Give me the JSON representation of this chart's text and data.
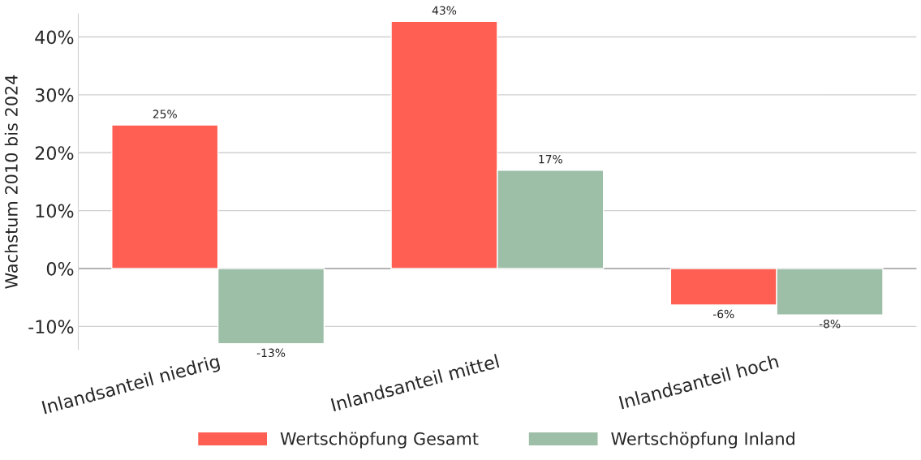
{
  "chart_data": {
    "type": "bar",
    "ylabel": "Wachstum 2010 bis 2024",
    "categories": [
      "Inlandsanteil niedrig",
      "Inlandsanteil mittel",
      "Inlandsanteil hoch"
    ],
    "series": [
      {
        "name": "Wertschöpfung Gesamt",
        "color": "#ff5f52",
        "values": [
          24.8,
          42.7,
          -6.3
        ],
        "value_labels": [
          "25%",
          "43%",
          "-6%"
        ]
      },
      {
        "name": "Wertschöpfung Inland",
        "color": "#9dbfa7",
        "values": [
          -13.0,
          17.0,
          -8.0
        ],
        "value_labels": [
          "-13%",
          "17%",
          "-8%"
        ]
      }
    ],
    "ylim": [
      -14,
      44
    ],
    "yticks": [
      {
        "value": -10,
        "label": "-10%"
      },
      {
        "value": 0,
        "label": "0%"
      },
      {
        "value": 10,
        "label": "10%"
      },
      {
        "value": 20,
        "label": "20%"
      },
      {
        "value": 30,
        "label": "30%"
      },
      {
        "value": 40,
        "label": "40%"
      }
    ],
    "ref_lines": [
      {
        "axis": "y",
        "value": 0,
        "color": "#a6a6a6"
      }
    ],
    "grid": "y",
    "legend": "bottom"
  }
}
